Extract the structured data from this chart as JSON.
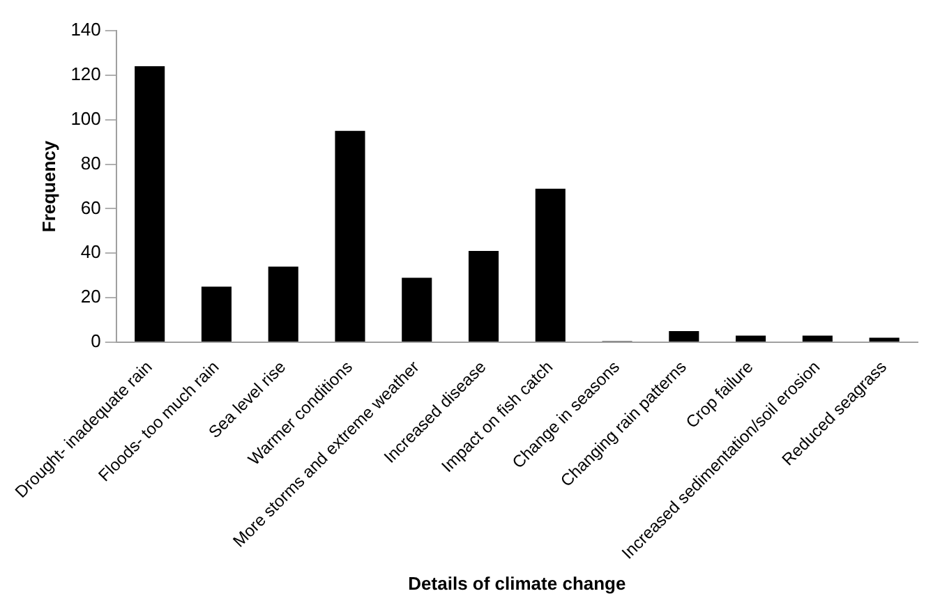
{
  "chart_data": {
    "type": "bar",
    "xlabel": "Details of climate change",
    "ylabel": "Frequency",
    "categories": [
      "Drought- inadequate rain",
      "Floods- too much rain",
      "Sea level rise",
      "Warmer conditions",
      "More storms and extreme weather",
      "Increased disease",
      "Impact on fish catch",
      "Change in seasons",
      "Changing rain patterns",
      "Crop failure",
      "Increased sedimentation/soil erosion",
      "Reduced seagrass"
    ],
    "values": [
      124,
      25,
      34,
      95,
      29,
      41,
      69,
      0.5,
      5,
      3,
      3,
      2
    ],
    "color": "#000000",
    "ylim": [
      0,
      140
    ],
    "yticks": [
      0,
      20,
      40,
      60,
      80,
      100,
      120,
      140
    ],
    "grid": false,
    "legend": false
  }
}
